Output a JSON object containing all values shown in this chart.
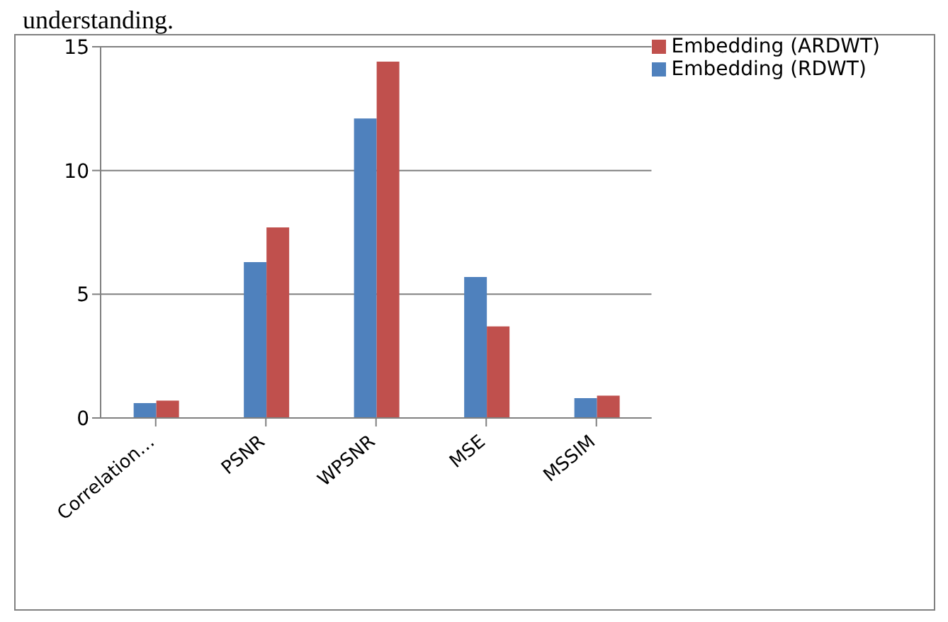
{
  "chart_data": {
    "type": "bar",
    "annotations": [
      "understanding."
    ],
    "categories": [
      "Correlation…",
      "PSNR",
      "WPSNR",
      "MSE",
      "MSSIM"
    ],
    "series": [
      {
        "name": "Embedding (RDWT)",
        "color": "#4f81bd",
        "values": [
          0.6,
          6.3,
          12.1,
          5.7,
          0.8
        ]
      },
      {
        "name": "Embedding (ARDWT)",
        "color": "#c0504d",
        "values": [
          0.7,
          7.7,
          14.4,
          3.7,
          0.9
        ]
      }
    ],
    "ylim": [
      0,
      15
    ],
    "yticks": [
      0,
      5,
      10,
      15
    ],
    "grid": "y",
    "legend": "top right"
  }
}
